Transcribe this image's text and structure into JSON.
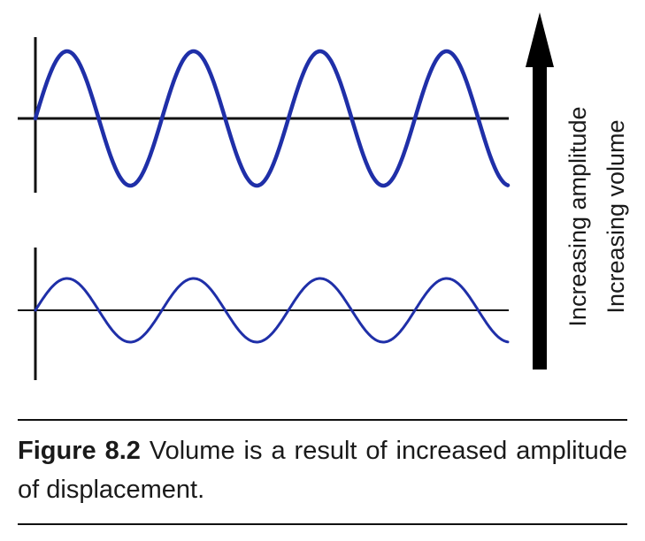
{
  "figure": {
    "arrow_labels": [
      "Increasing amplitude",
      "Increasing volume"
    ],
    "wave_color": "#1f2fa8",
    "axis_color": "#111111",
    "arrow_color": "#000000",
    "waves": [
      {
        "amplitude": "large",
        "cycles": 4
      },
      {
        "amplitude": "small",
        "cycles": 4
      }
    ]
  },
  "caption": {
    "label": "Figure 8.2",
    "text": "Volume is a result of increased amplitude of displacement."
  }
}
